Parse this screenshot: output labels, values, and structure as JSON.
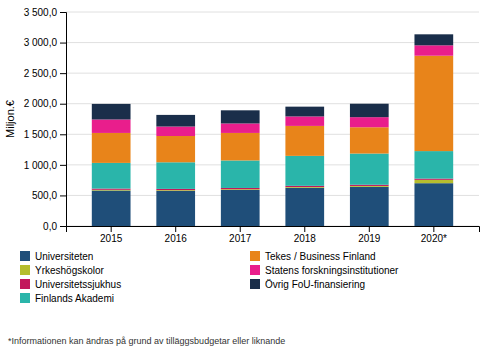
{
  "chart_data": {
    "type": "bar",
    "stacked": true,
    "categories": [
      "2015",
      "2016",
      "2017",
      "2018",
      "2019",
      "2020*"
    ],
    "series": [
      {
        "name": "Universiteten",
        "color": "#1f4e79",
        "values": [
          580,
          575,
          590,
          625,
          640,
          700
        ]
      },
      {
        "name": "Yrkeshögskolor",
        "color": "#b5bd2e",
        "values": [
          12,
          12,
          12,
          12,
          15,
          55
        ]
      },
      {
        "name": "Universitetssjukhus",
        "color": "#c2185b",
        "values": [
          20,
          20,
          20,
          20,
          20,
          20
        ]
      },
      {
        "name": "Finlands Akademi",
        "color": "#2ab5aa",
        "values": [
          420,
          435,
          450,
          490,
          510,
          450
        ]
      },
      {
        "name": "Tekes / Business Finland",
        "color": "#e8841a",
        "values": [
          490,
          430,
          450,
          490,
          430,
          1560
        ]
      },
      {
        "name": "Statens forskningsinstitutioner",
        "color": "#e91e8c",
        "values": [
          220,
          155,
          155,
          155,
          165,
          170
        ]
      },
      {
        "name": "Övrig FoU-finansiering",
        "color": "#1a2e4a",
        "values": [
          255,
          190,
          215,
          160,
          220,
          180
        ]
      }
    ],
    "ylabel": "Miljon.€",
    "ylim": [
      0,
      3500
    ],
    "yticks": [
      {
        "value": 0,
        "label": "0,0"
      },
      {
        "value": 500,
        "label": "500,0"
      },
      {
        "value": 1000,
        "label": "1 000,0"
      },
      {
        "value": 1500,
        "label": "1 500,0"
      },
      {
        "value": 2000,
        "label": "2 000,0"
      },
      {
        "value": 2500,
        "label": "2 500,0"
      },
      {
        "value": 3000,
        "label": "3 000,0"
      },
      {
        "value": 3500,
        "label": "3 500,0"
      }
    ],
    "grid": true,
    "legend": "bottom",
    "footnote": "*Informationen kan ändras på grund av tilläggsbudgetar eller liknande"
  }
}
